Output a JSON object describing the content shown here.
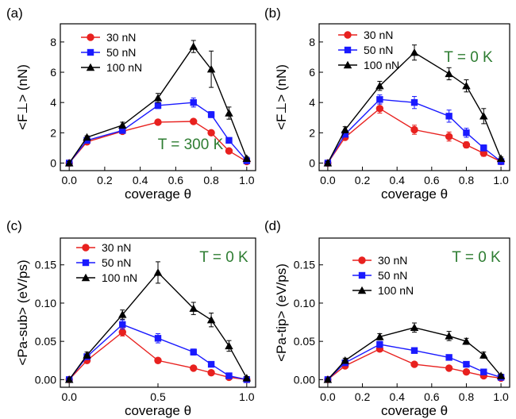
{
  "panels": [
    {
      "label": "(a)",
      "ylabel": "<F⊥> (nN)",
      "xlabel": "coverage θ",
      "annotation": "T = 300 K",
      "annotation_color": "#2e7d32",
      "x_ticks": [
        "0.0",
        "0.2",
        "0.4",
        "0.6",
        "0.8",
        "1.0"
      ],
      "y_ticks": [
        "0",
        "2",
        "4",
        "6",
        "8"
      ]
    },
    {
      "label": "(b)",
      "ylabel": "<F⊥> (nN)",
      "xlabel": "coverage θ",
      "annotation": "T = 0 K",
      "annotation_color": "#2e7d32",
      "x_ticks": [
        "0.0",
        "0.2",
        "0.4",
        "0.6",
        "0.8",
        "1.0"
      ],
      "y_ticks": [
        "0",
        "2",
        "4",
        "6",
        "8"
      ]
    },
    {
      "label": "(c)",
      "ylabel": "<Pa-sub> (eV/ps)",
      "xlabel": "coverage θ",
      "annotation": "T = 0 K",
      "annotation_color": "#2e7d32",
      "x_ticks": [
        "0.0",
        "0.5",
        "1.0"
      ],
      "y_ticks": [
        "0.00",
        "0.05",
        "0.10",
        "0.15"
      ]
    },
    {
      "label": "(d)",
      "ylabel": "<Pa-tip> (eV/ps)",
      "xlabel": "coverage θ",
      "annotation": "T = 0 K",
      "annotation_color": "#2e7d32",
      "x_ticks": [
        "0.0",
        "0.2",
        "0.4",
        "0.6",
        "0.8",
        "1.0"
      ],
      "y_ticks": [
        "0.00",
        "0.05",
        "0.10",
        "0.15"
      ]
    }
  ],
  "legend": [
    {
      "name": "30 nN",
      "color": "#e8211f",
      "marker": "circle"
    },
    {
      "name": "50 nN",
      "color": "#1a1aff",
      "marker": "square"
    },
    {
      "name": "100 nN",
      "color": "#000000",
      "marker": "triangle"
    }
  ],
  "chart_data": [
    {
      "type": "line",
      "panel": "(a)",
      "xlabel": "coverage θ",
      "ylabel": "<F⊥> (nN)",
      "xlim": [
        -0.05,
        1.05
      ],
      "ylim": [
        -0.5,
        9.2
      ],
      "x": [
        0.0,
        0.1,
        0.3,
        0.5,
        0.7,
        0.8,
        0.9,
        1.0
      ],
      "series": [
        {
          "name": "30 nN",
          "values": [
            0.0,
            1.4,
            2.1,
            2.7,
            2.75,
            2.0,
            0.8,
            0.1
          ],
          "errors": [
            0.1,
            0.1,
            0.1,
            0.1,
            0.1,
            0.1,
            0.1,
            0.1
          ]
        },
        {
          "name": "50 nN",
          "values": [
            0.0,
            1.5,
            2.15,
            3.8,
            4.0,
            3.2,
            1.5,
            0.15
          ],
          "errors": [
            0.1,
            0.1,
            0.1,
            0.2,
            0.3,
            0.2,
            0.1,
            0.1
          ]
        },
        {
          "name": "100 nN",
          "values": [
            0.0,
            1.7,
            2.5,
            4.3,
            7.7,
            6.2,
            3.3,
            0.3
          ],
          "errors": [
            0.1,
            0.1,
            0.2,
            0.3,
            0.4,
            1.2,
            0.4,
            0.1
          ]
        }
      ]
    },
    {
      "type": "line",
      "panel": "(b)",
      "xlabel": "coverage θ",
      "ylabel": "<F⊥> (nN)",
      "xlim": [
        -0.05,
        1.05
      ],
      "ylim": [
        -0.5,
        9.2
      ],
      "x": [
        0.0,
        0.1,
        0.3,
        0.5,
        0.7,
        0.8,
        0.9,
        1.0
      ],
      "series": [
        {
          "name": "30 nN",
          "values": [
            0.0,
            1.7,
            3.6,
            2.2,
            1.75,
            1.2,
            0.65,
            0.1
          ],
          "errors": [
            0.1,
            0.1,
            0.3,
            0.3,
            0.3,
            0.2,
            0.2,
            0.1
          ]
        },
        {
          "name": "50 nN",
          "values": [
            0.0,
            1.9,
            4.2,
            4.0,
            3.1,
            2.0,
            1.0,
            0.1
          ],
          "errors": [
            0.1,
            0.1,
            0.3,
            0.4,
            0.4,
            0.3,
            0.2,
            0.1
          ]
        },
        {
          "name": "100 nN",
          "values": [
            0.0,
            2.2,
            5.1,
            7.3,
            5.9,
            5.1,
            3.1,
            0.3
          ],
          "errors": [
            0.1,
            0.2,
            0.3,
            0.5,
            0.4,
            0.4,
            0.5,
            0.1
          ]
        }
      ]
    },
    {
      "type": "line",
      "panel": "(c)",
      "xlabel": "coverage θ",
      "ylabel": "<Pa-sub> (eV/ps)",
      "xlim": [
        -0.05,
        1.05
      ],
      "ylim": [
        -0.01,
        0.185
      ],
      "x": [
        0.0,
        0.1,
        0.3,
        0.5,
        0.7,
        0.8,
        0.9,
        1.0
      ],
      "series": [
        {
          "name": "30 nN",
          "values": [
            0.0,
            0.025,
            0.062,
            0.025,
            0.015,
            0.009,
            0.003,
            0.0
          ],
          "errors": [
            0.002,
            0.003,
            0.005,
            0.003,
            0.002,
            0.002,
            0.002,
            0.001
          ]
        },
        {
          "name": "50 nN",
          "values": [
            0.0,
            0.03,
            0.072,
            0.054,
            0.036,
            0.02,
            0.005,
            0.0
          ],
          "errors": [
            0.002,
            0.003,
            0.006,
            0.006,
            0.004,
            0.003,
            0.002,
            0.001
          ]
        },
        {
          "name": "100 nN",
          "values": [
            0.0,
            0.032,
            0.085,
            0.14,
            0.093,
            0.078,
            0.044,
            0.002
          ],
          "errors": [
            0.002,
            0.004,
            0.006,
            0.014,
            0.008,
            0.009,
            0.007,
            0.002
          ]
        }
      ]
    },
    {
      "type": "line",
      "panel": "(d)",
      "xlabel": "coverage θ",
      "ylabel": "<Pa-tip> (eV/ps)",
      "xlim": [
        -0.05,
        1.05
      ],
      "ylim": [
        -0.01,
        0.185
      ],
      "x": [
        0.0,
        0.1,
        0.3,
        0.5,
        0.7,
        0.8,
        0.9,
        1.0
      ],
      "series": [
        {
          "name": "30 nN",
          "values": [
            0.0,
            0.018,
            0.04,
            0.02,
            0.015,
            0.01,
            0.005,
            0.002
          ],
          "errors": [
            0.001,
            0.002,
            0.003,
            0.002,
            0.002,
            0.002,
            0.002,
            0.001
          ]
        },
        {
          "name": "50 nN",
          "values": [
            0.0,
            0.022,
            0.046,
            0.038,
            0.029,
            0.02,
            0.01,
            0.003
          ],
          "errors": [
            0.001,
            0.002,
            0.004,
            0.003,
            0.003,
            0.002,
            0.002,
            0.001
          ]
        },
        {
          "name": "100 nN",
          "values": [
            0.0,
            0.025,
            0.056,
            0.068,
            0.057,
            0.05,
            0.032,
            0.005
          ],
          "errors": [
            0.001,
            0.003,
            0.004,
            0.006,
            0.006,
            0.004,
            0.004,
            0.002
          ]
        }
      ]
    }
  ]
}
